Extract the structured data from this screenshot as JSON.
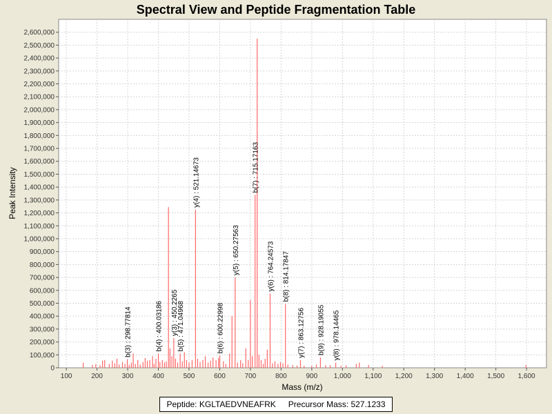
{
  "chart_data": {
    "type": "bar",
    "title": "Spectral View and Peptide Fragmentation Table",
    "xlabel": "Mass (m/z)",
    "ylabel": "Peak Intensity",
    "xlim": [
      75,
      1665
    ],
    "ylim": [
      0,
      2700000
    ],
    "x_ticks": [
      100,
      200,
      300,
      400,
      500,
      600,
      700,
      800,
      900,
      1000,
      1100,
      1200,
      1300,
      1400,
      1500,
      1600
    ],
    "x_tick_labels": [
      "100",
      "200",
      "300",
      "400",
      "500",
      "600",
      "700",
      "800",
      "900",
      "1,000",
      "1,100",
      "1,200",
      "1,300",
      "1,400",
      "1,500",
      "1,600"
    ],
    "y_ticks": [
      0,
      100000,
      200000,
      300000,
      400000,
      500000,
      600000,
      700000,
      800000,
      900000,
      1000000,
      1100000,
      1200000,
      1300000,
      1400000,
      1500000,
      1600000,
      1700000,
      1800000,
      1900000,
      2000000,
      2100000,
      2200000,
      2300000,
      2400000,
      2500000,
      2600000
    ],
    "y_tick_labels": [
      "0",
      "100,000",
      "200,000",
      "300,000",
      "400,000",
      "500,000",
      "600,000",
      "700,000",
      "800,000",
      "900,000",
      "1,000,000",
      "1,100,000",
      "1,200,000",
      "1,300,000",
      "1,400,000",
      "1,500,000",
      "1,600,000",
      "1,700,000",
      "1,800,000",
      "1,900,000",
      "2,000,000",
      "2,100,000",
      "2,200,000",
      "2,300,000",
      "2,400,000",
      "2,500,000",
      "2,600,000"
    ],
    "grid": true,
    "series_color": "#FF6666",
    "peaks": [
      {
        "mz": 155,
        "intensity": 40000
      },
      {
        "mz": 185,
        "intensity": 22000
      },
      {
        "mz": 196,
        "intensity": 28000
      },
      {
        "mz": 210,
        "intensity": 20000
      },
      {
        "mz": 218,
        "intensity": 55000
      },
      {
        "mz": 225,
        "intensity": 60000
      },
      {
        "mz": 240,
        "intensity": 30000
      },
      {
        "mz": 250,
        "intensity": 55000
      },
      {
        "mz": 258,
        "intensity": 35000
      },
      {
        "mz": 265,
        "intensity": 70000
      },
      {
        "mz": 272,
        "intensity": 25000
      },
      {
        "mz": 283,
        "intensity": 45000
      },
      {
        "mz": 291,
        "intensity": 30000
      },
      {
        "mz": 298.77814,
        "intensity": 65000
      },
      {
        "mz": 305,
        "intensity": 22000
      },
      {
        "mz": 312,
        "intensity": 40000
      },
      {
        "mz": 318,
        "intensity": 110000
      },
      {
        "mz": 325,
        "intensity": 30000
      },
      {
        "mz": 333,
        "intensity": 60000
      },
      {
        "mz": 341,
        "intensity": 25000
      },
      {
        "mz": 350,
        "intensity": 45000
      },
      {
        "mz": 357,
        "intensity": 75000
      },
      {
        "mz": 364,
        "intensity": 55000
      },
      {
        "mz": 372,
        "intensity": 60000
      },
      {
        "mz": 381,
        "intensity": 90000
      },
      {
        "mz": 386,
        "intensity": 30000
      },
      {
        "mz": 392,
        "intensity": 70000
      },
      {
        "mz": 400.03186,
        "intensity": 110000
      },
      {
        "mz": 405,
        "intensity": 45000
      },
      {
        "mz": 413,
        "intensity": 60000
      },
      {
        "mz": 420,
        "intensity": 40000
      },
      {
        "mz": 426,
        "intensity": 50000
      },
      {
        "mz": 433,
        "intensity": 1245000
      },
      {
        "mz": 438,
        "intensity": 150000
      },
      {
        "mz": 444,
        "intensity": 90000
      },
      {
        "mz": 450.2265,
        "intensity": 230000
      },
      {
        "mz": 456,
        "intensity": 70000
      },
      {
        "mz": 463,
        "intensity": 40000
      },
      {
        "mz": 471.04968,
        "intensity": 110000
      },
      {
        "mz": 478,
        "intensity": 50000
      },
      {
        "mz": 485,
        "intensity": 120000
      },
      {
        "mz": 492,
        "intensity": 60000
      },
      {
        "mz": 500,
        "intensity": 40000
      },
      {
        "mz": 510,
        "intensity": 60000
      },
      {
        "mz": 521.14673,
        "intensity": 1225000
      },
      {
        "mz": 528,
        "intensity": 70000
      },
      {
        "mz": 536,
        "intensity": 45000
      },
      {
        "mz": 545,
        "intensity": 60000
      },
      {
        "mz": 553,
        "intensity": 90000
      },
      {
        "mz": 562,
        "intensity": 40000
      },
      {
        "mz": 570,
        "intensity": 55000
      },
      {
        "mz": 578,
        "intensity": 80000
      },
      {
        "mz": 588,
        "intensity": 60000
      },
      {
        "mz": 596,
        "intensity": 75000
      },
      {
        "mz": 600.22998,
        "intensity": 95000
      },
      {
        "mz": 612,
        "intensity": 50000
      },
      {
        "mz": 620,
        "intensity": 30000
      },
      {
        "mz": 632,
        "intensity": 110000
      },
      {
        "mz": 640,
        "intensity": 400000
      },
      {
        "mz": 650.27563,
        "intensity": 700000
      },
      {
        "mz": 658,
        "intensity": 40000
      },
      {
        "mz": 668,
        "intensity": 60000
      },
      {
        "mz": 675,
        "intensity": 35000
      },
      {
        "mz": 685,
        "intensity": 150000
      },
      {
        "mz": 693,
        "intensity": 60000
      },
      {
        "mz": 700,
        "intensity": 525000
      },
      {
        "mz": 706,
        "intensity": 90000
      },
      {
        "mz": 715.17163,
        "intensity": 1340000
      },
      {
        "mz": 722,
        "intensity": 2550000
      },
      {
        "mz": 728,
        "intensity": 100000
      },
      {
        "mz": 735,
        "intensity": 60000
      },
      {
        "mz": 742,
        "intensity": 30000
      },
      {
        "mz": 748,
        "intensity": 70000
      },
      {
        "mz": 755,
        "intensity": 140000
      },
      {
        "mz": 764.24573,
        "intensity": 575000
      },
      {
        "mz": 772,
        "intensity": 35000
      },
      {
        "mz": 780,
        "intensity": 50000
      },
      {
        "mz": 790,
        "intensity": 30000
      },
      {
        "mz": 798,
        "intensity": 45000
      },
      {
        "mz": 806,
        "intensity": 35000
      },
      {
        "mz": 814.17847,
        "intensity": 495000
      },
      {
        "mz": 822,
        "intensity": 25000
      },
      {
        "mz": 838,
        "intensity": 20000
      },
      {
        "mz": 852,
        "intensity": 18000
      },
      {
        "mz": 863.12756,
        "intensity": 60000
      },
      {
        "mz": 875,
        "intensity": 15000
      },
      {
        "mz": 900,
        "intensity": 15000
      },
      {
        "mz": 915,
        "intensity": 25000
      },
      {
        "mz": 928.19055,
        "intensity": 80000
      },
      {
        "mz": 945,
        "intensity": 20000
      },
      {
        "mz": 960,
        "intensity": 20000
      },
      {
        "mz": 978.14465,
        "intensity": 40000
      },
      {
        "mz": 995,
        "intensity": 15000
      },
      {
        "mz": 1012,
        "intensity": 18000
      },
      {
        "mz": 1045,
        "intensity": 30000
      },
      {
        "mz": 1055,
        "intensity": 40000
      },
      {
        "mz": 1085,
        "intensity": 22000
      },
      {
        "mz": 1130,
        "intensity": 15000
      },
      {
        "mz": 1598,
        "intensity": 20000
      }
    ],
    "annotations": [
      {
        "label": "b(3) : 298.77814",
        "mz": 298.77814,
        "intensity": 65000
      },
      {
        "label": "b(4) : 400.03186",
        "mz": 400.03186,
        "intensity": 110000
      },
      {
        "label": "y(3) : 450.2265",
        "mz": 450.2265,
        "intensity": 230000
      },
      {
        "label": "b(5) : 471.04968",
        "mz": 471.04968,
        "intensity": 110000
      },
      {
        "label": "y(4) : 521.14673",
        "mz": 521.14673,
        "intensity": 1225000
      },
      {
        "label": "b(6) : 600.22998",
        "mz": 600.22998,
        "intensity": 95000
      },
      {
        "label": "y(5) : 650.27563",
        "mz": 650.27563,
        "intensity": 700000
      },
      {
        "label": "b(7) : 715.17163",
        "mz": 715.17163,
        "intensity": 1340000
      },
      {
        "label": "y(6) : 764.24573",
        "mz": 764.24573,
        "intensity": 575000
      },
      {
        "label": "b(8) : 814.17847",
        "mz": 814.17847,
        "intensity": 495000
      },
      {
        "label": "y(7) : 863.12756",
        "mz": 863.12756,
        "intensity": 60000
      },
      {
        "label": "b(9) : 928.19055",
        "mz": 928.19055,
        "intensity": 80000
      },
      {
        "label": "y(8) : 978.14465",
        "mz": 978.14465,
        "intensity": 40000
      }
    ]
  },
  "footer": {
    "peptide_label": "Peptide: KGLTAEDVNEAFRK",
    "precursor_label": "Precursor Mass: 527.1233"
  }
}
